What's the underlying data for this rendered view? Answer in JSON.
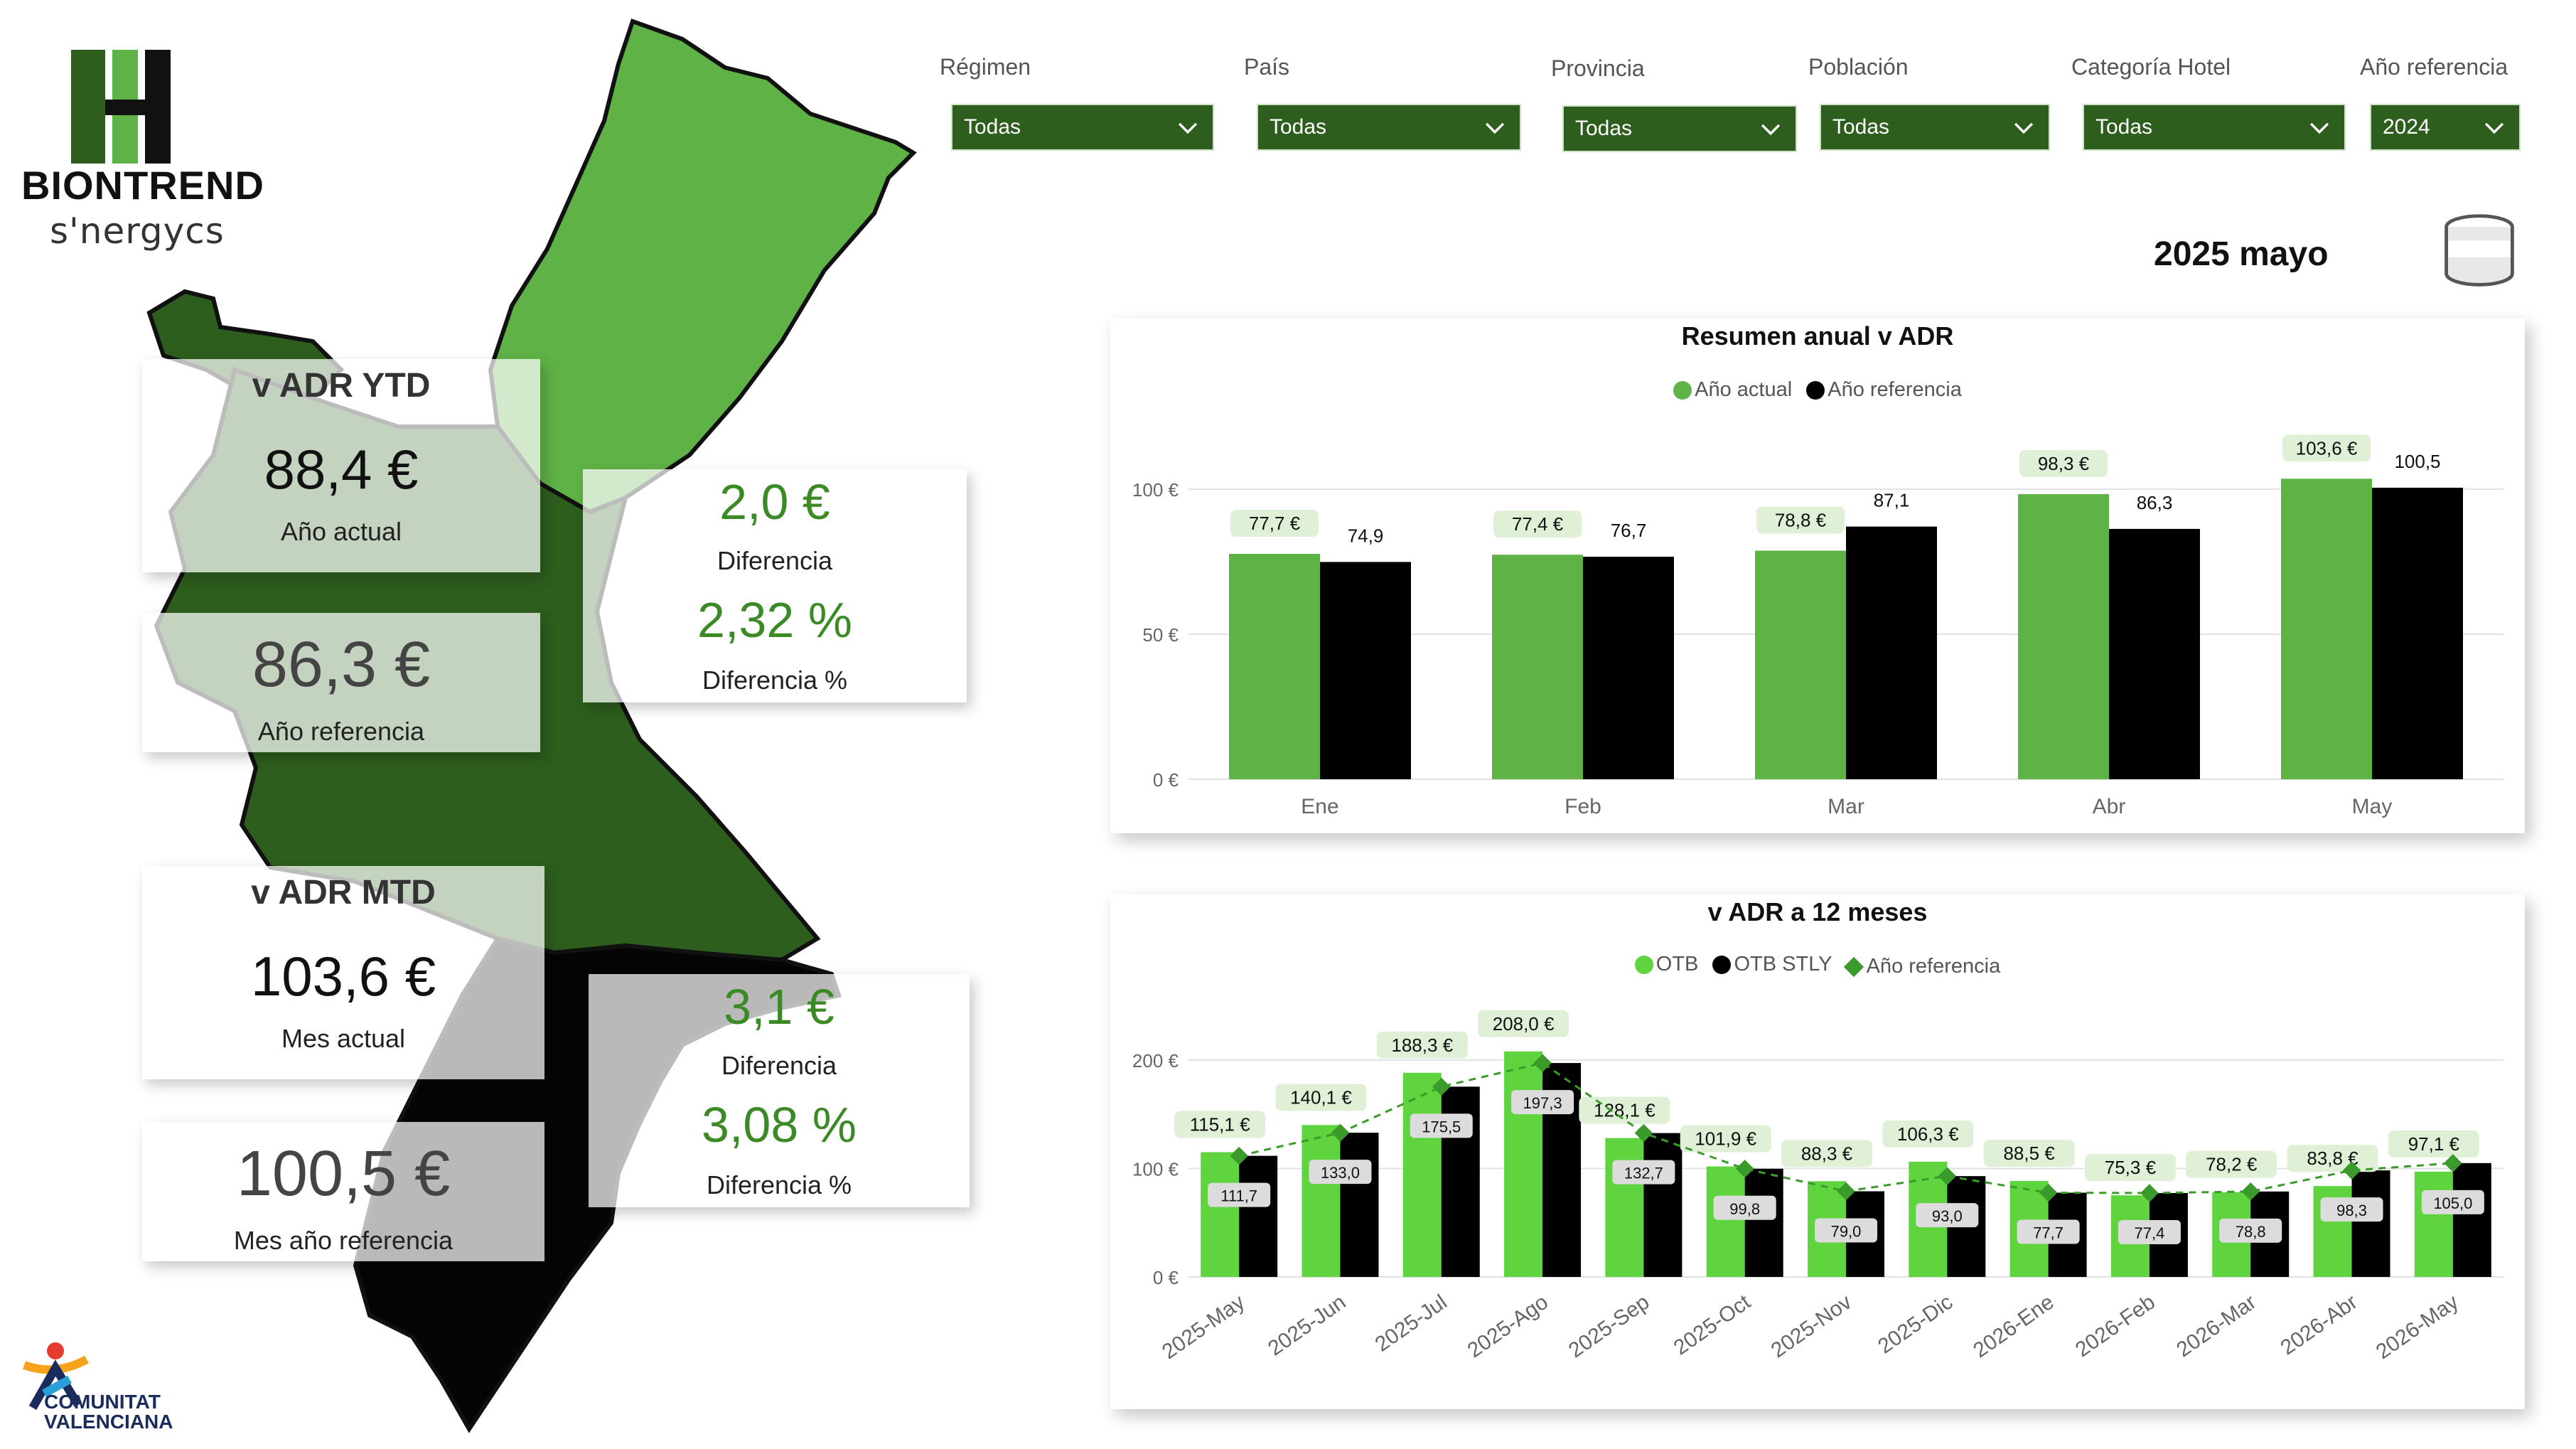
{
  "brand": {
    "name": "BIONTREND",
    "sub": "s'nergycs"
  },
  "footer_logo": {
    "name_line1": "COMUNITAT",
    "name_line2": "VALENCIANA"
  },
  "filters": [
    {
      "label": "Régimen",
      "value": "Todas"
    },
    {
      "label": "País",
      "value": "Todas"
    },
    {
      "label": "Provincia",
      "value": "Todas"
    },
    {
      "label": "Población",
      "value": "Todas"
    },
    {
      "label": "Categoría Hotel",
      "value": "Todas"
    },
    {
      "label": "Año referencia",
      "value": "2024"
    }
  ],
  "period": "2025 mayo",
  "ytd": {
    "title": "v ADR YTD",
    "actual_value": "88,4 €",
    "actual_label": "Año actual",
    "ref_value": "86,3 €",
    "ref_label": "Año referencia",
    "diff_value": "2,0 €",
    "diff_label": "Diferencia",
    "diffpct_value": "2,32 %",
    "diffpct_label": "Diferencia %"
  },
  "mtd": {
    "title": "v ADR MTD",
    "actual_value": "103,6 €",
    "actual_label": "Mes actual",
    "ref_value": "100,5 €",
    "ref_label": "Mes año referencia",
    "diff_value": "3,1 €",
    "diff_label": "Diferencia",
    "diffpct_value": "3,08 %",
    "diffpct_label": "Diferencia %"
  },
  "colors": {
    "green_dark": "#2d5e1e",
    "green": "#5fb246",
    "green_bright": "#5fd43f",
    "black": "#000000",
    "kpi_green": "#3b8a25"
  },
  "chart_data": [
    {
      "type": "bar",
      "title": "Resumen anual v ADR",
      "categories": [
        "Ene",
        "Feb",
        "Mar",
        "Abr",
        "May"
      ],
      "series": [
        {
          "name": "Año actual",
          "values": [
            77.7,
            77.4,
            78.8,
            98.3,
            103.6
          ],
          "labels": [
            "77,7 €",
            "77,4 €",
            "78,8 €",
            "98,3 €",
            "103,6 €"
          ],
          "color": "#5fb246"
        },
        {
          "name": "Año referencia",
          "values": [
            74.9,
            76.7,
            87.1,
            86.3,
            100.5
          ],
          "labels": [
            "74,9",
            "76,7",
            "87,1",
            "86,3",
            "100,5"
          ],
          "color": "#000000"
        }
      ],
      "yticks": [
        0,
        50,
        100
      ],
      "ytick_labels": [
        "0 €",
        "50 €",
        "100 €"
      ],
      "ylim": [
        0,
        115
      ],
      "legend": "top-center"
    },
    {
      "type": "bar",
      "title": "v ADR a 12 meses",
      "categories": [
        "2025-May",
        "2025-Jun",
        "2025-Jul",
        "2025-Ago",
        "2025-Sep",
        "2025-Oct",
        "2025-Nov",
        "2025-Dic",
        "2026-Ene",
        "2026-Feb",
        "2026-Mar",
        "2026-Abr",
        "2026-May"
      ],
      "series": [
        {
          "name": "OTB",
          "values": [
            115.1,
            140.1,
            188.3,
            208.0,
            128.1,
            101.9,
            88.3,
            106.3,
            88.5,
            75.3,
            78.2,
            83.8,
            97.1
          ],
          "labels": [
            "115,1 €",
            "140,1 €",
            "188,3 €",
            "208,0 €",
            "128,1 €",
            "101,9 €",
            "88,3 €",
            "106,3 €",
            "88,5 €",
            "75,3 €",
            "78,2 €",
            "83,8 €",
            "97,1 €"
          ],
          "color": "#5fd43f"
        },
        {
          "name": "OTB STLY",
          "values": [
            111.7,
            133.0,
            175.5,
            197.3,
            132.7,
            99.8,
            79.0,
            93.0,
            77.7,
            77.4,
            78.8,
            98.3,
            105.0
          ],
          "labels": [
            "111,7",
            "133,0",
            "175,5",
            "197,3",
            "132,7",
            "99,8",
            "79,0",
            "93,0",
            "77,7",
            "77,4",
            "78,8",
            "98,3",
            "105,0"
          ],
          "color": "#000000"
        },
        {
          "name": "Año referencia",
          "values": [
            111.7,
            133.0,
            175.5,
            197.3,
            132.7,
            99.8,
            79.0,
            93.0,
            77.7,
            77.4,
            78.8,
            98.3,
            105.0
          ],
          "color": "#3a9a2a",
          "style": "dashed-diamond"
        }
      ],
      "yticks": [
        0,
        100,
        200
      ],
      "ytick_labels": [
        "0 €",
        "100 €",
        "200 €"
      ],
      "ylim": [
        0,
        230
      ],
      "legend": "top-center"
    }
  ]
}
